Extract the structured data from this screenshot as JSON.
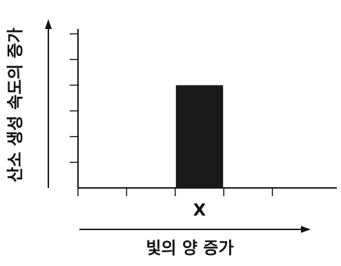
{
  "chart_data": {
    "type": "bar",
    "categories": [
      "",
      "",
      "X",
      "",
      ""
    ],
    "values": [
      0,
      0,
      4,
      0,
      0
    ],
    "title": "",
    "xlabel": "빛의 양 증가",
    "ylabel": "산소 생성 속도의 증가",
    "ylim": [
      0,
      6
    ],
    "grid": false,
    "legend": "none",
    "colors": {
      "bar": "#1a1a1a",
      "axis": "#111111",
      "background": "#ffffff"
    },
    "y_arrow": true,
    "x_arrow": true
  }
}
